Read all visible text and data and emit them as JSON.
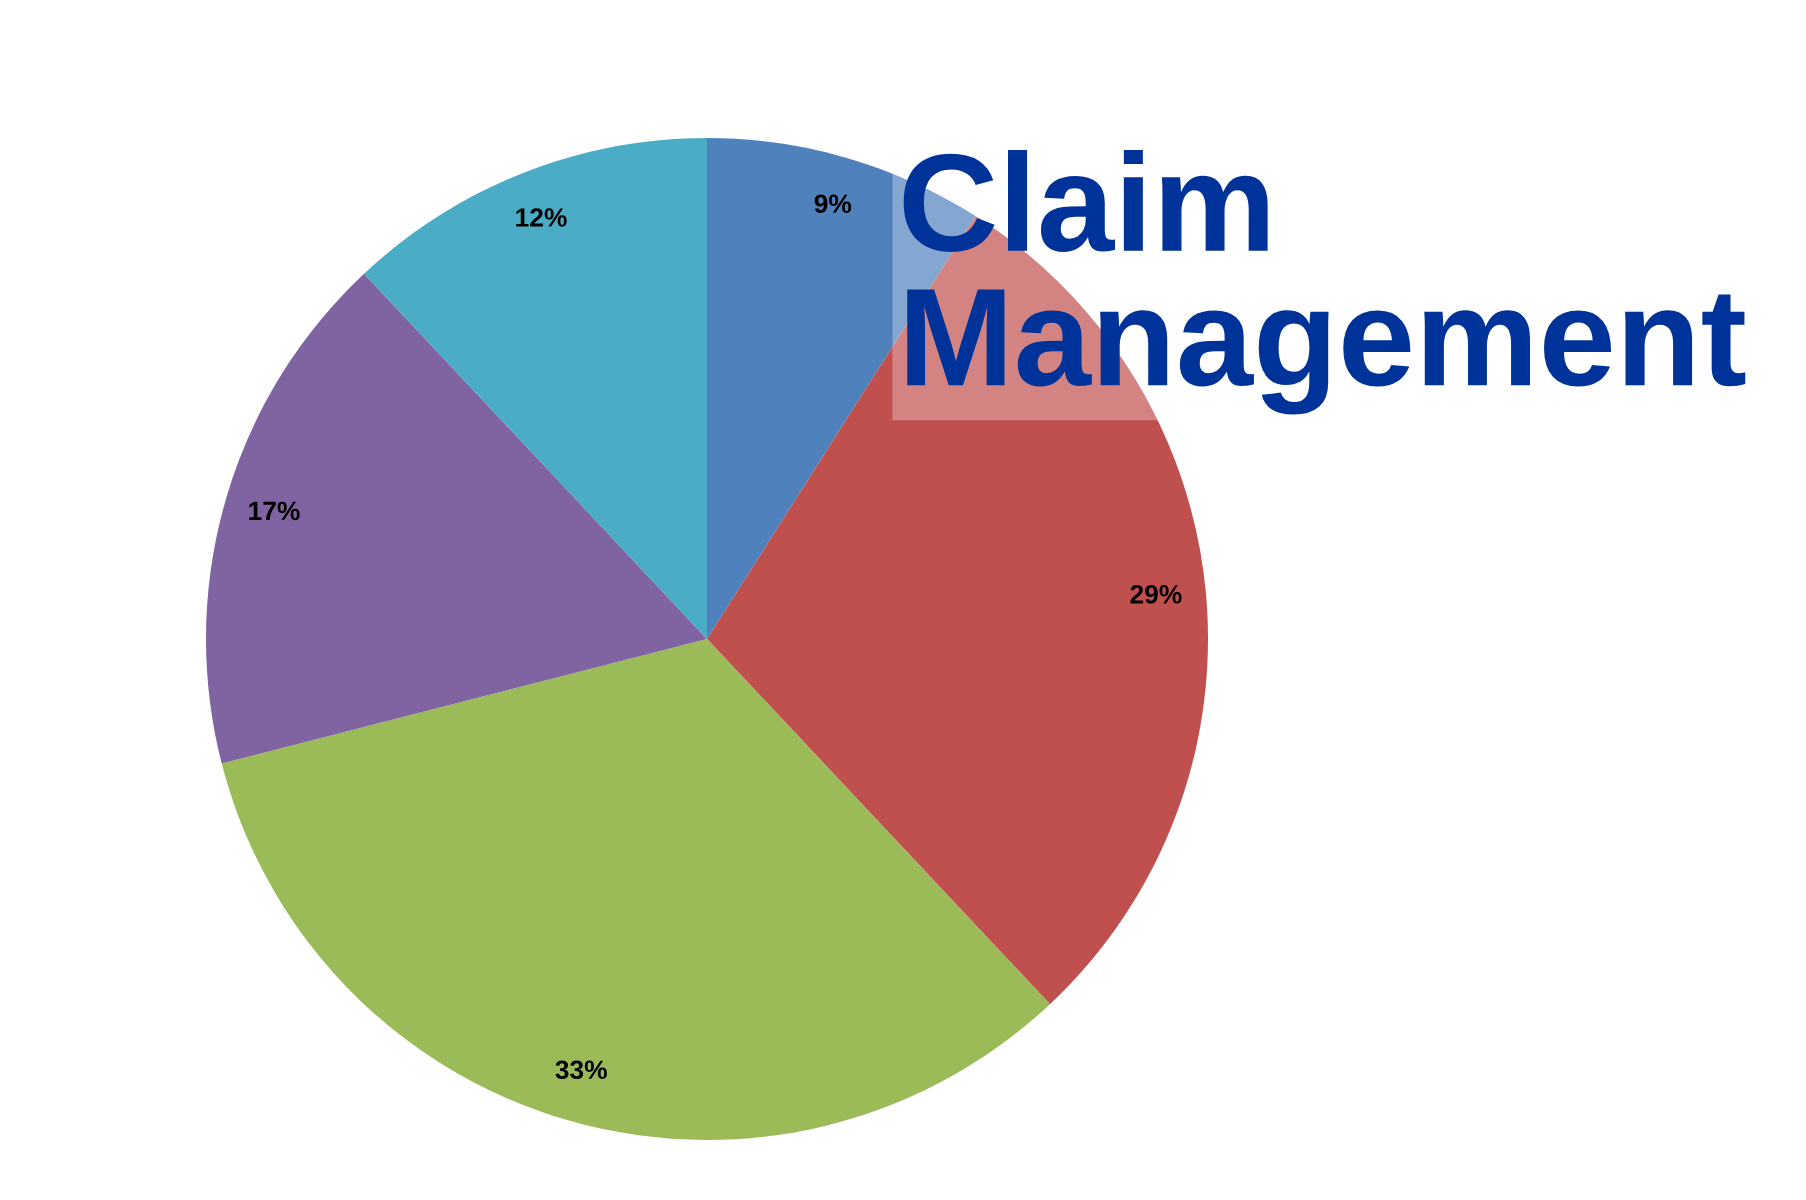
{
  "chart_data": {
    "type": "pie",
    "title": "Claim Management",
    "categories": [
      null,
      null,
      null,
      null,
      null
    ],
    "values": [
      9,
      29,
      33,
      17,
      12
    ],
    "colors": [
      "#4f81bd",
      "#c0504d",
      "#9bbb59",
      "#8064a2",
      "#4bacc6"
    ],
    "value_labels": [
      "9%",
      "29%",
      "33%",
      "17%",
      "12%"
    ]
  }
}
